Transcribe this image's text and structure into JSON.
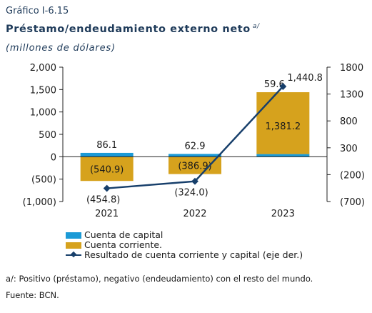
{
  "header": {
    "label": "Gráfico I-6.15",
    "title": "Préstamo/endeudamiento externo neto",
    "title_mark": "a/",
    "unit": "(millones de dólares)"
  },
  "chart_data": {
    "type": "bar",
    "categories": [
      "2021",
      "2022",
      "2023"
    ],
    "series": [
      {
        "name": "Cuenta de capital",
        "values": [
          86.1,
          62.9,
          59.6
        ],
        "color": "#1b9ad6",
        "axis": "left",
        "labels": [
          "86.1",
          "62.9",
          "59.6"
        ]
      },
      {
        "name": "Cuenta corriente.",
        "values": [
          -540.9,
          -386.9,
          1381.2
        ],
        "color": "#d6a21d",
        "axis": "left",
        "labels": [
          "(540.9)",
          "(386.9)",
          "1,381.2"
        ]
      },
      {
        "name": "Resultado de cuenta corriente y capital (eje der.)",
        "type": "line",
        "values": [
          -454.8,
          -324.0,
          1440.8
        ],
        "color": "#173f6b",
        "axis": "right",
        "labels": [
          "(454.8)",
          "(324.0)",
          "1,440.8"
        ]
      }
    ],
    "y_left": {
      "min": -1000,
      "max": 2000,
      "ticks": [
        2000,
        1500,
        1000,
        500,
        0,
        -500,
        -1000
      ],
      "tick_labels": [
        "2,000",
        "1,500",
        "1,000",
        "500",
        "0",
        "(500)",
        "(1,000)"
      ]
    },
    "y_right": {
      "min": -700,
      "max": 1800,
      "ticks": [
        1800,
        1300,
        800,
        300,
        -200,
        -700
      ],
      "tick_labels": [
        "1800",
        "1300",
        "800",
        "300",
        "(200)",
        "(700)"
      ]
    },
    "grid": false,
    "legend_position": "bottom-left"
  },
  "footnote": "a/: Positivo (préstamo), negativo (endeudamiento) con el resto del mundo.",
  "source": "Fuente: BCN."
}
